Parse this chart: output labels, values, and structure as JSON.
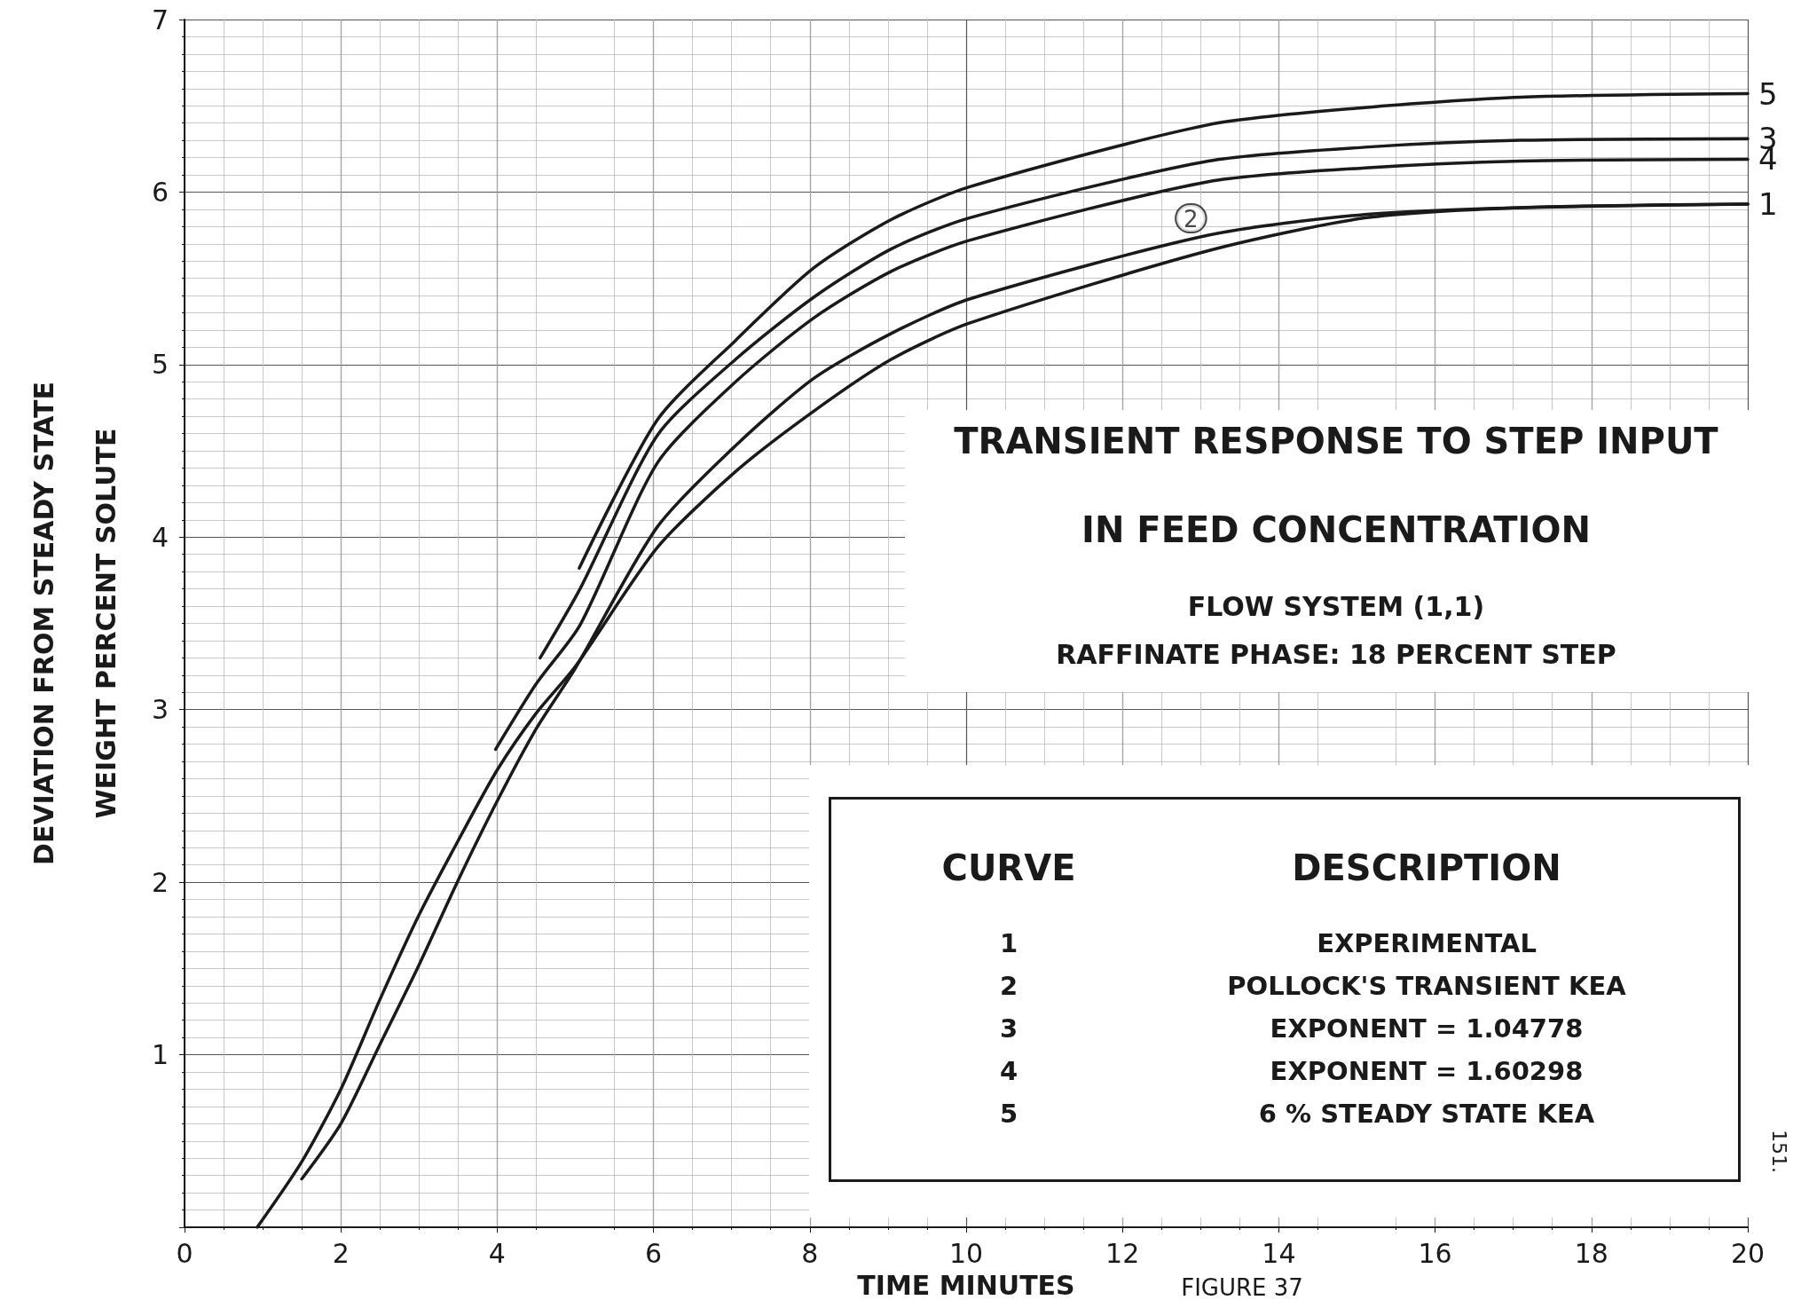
{
  "chart_data": {
    "type": "line",
    "title": "TRANSIENT RESPONSE TO STEP INPUT",
    "subtitle": "IN FEED CONCENTRATION",
    "xlabel": "TIME MINUTES",
    "ylabel": "DEVIATION FROM STEADY STATE\nWEIGHT PERCENT SOLUTE",
    "xlim": [
      0,
      20
    ],
    "xticks": [
      0,
      2,
      4,
      6,
      8,
      10,
      12,
      14,
      16,
      18,
      20
    ],
    "ylim": [
      0,
      7
    ],
    "yticks": [
      {
        "value": 0,
        "label": null
      },
      1,
      2,
      3,
      4,
      5,
      6,
      7
    ],
    "grid": true,
    "marker": "none",
    "line_style": "solid",
    "legend": false,
    "series": [
      {
        "name": "1",
        "color": "#1a1a1a",
        "x": [
          0.93,
          1.5,
          2,
          2.5,
          3,
          3.5,
          4,
          4.5,
          5,
          6.05,
          7.05,
          8.05,
          9.04,
          10.04,
          13.1,
          15.1,
          17.1,
          20
        ],
        "values": [
          0,
          0.38,
          0.8,
          1.32,
          1.81,
          2.24,
          2.65,
          2.98,
          3.25,
          3.94,
          4.38,
          4.73,
          5.03,
          5.24,
          5.66,
          5.85,
          5.91,
          5.93
        ]
      },
      {
        "color": "#1a1a1a",
        "x": [
          1.5,
          2,
          2.5,
          3,
          3.5,
          4,
          4.5,
          5,
          6.05,
          7.05,
          8.05,
          9.04,
          10.04,
          13.1,
          15.1,
          17.1,
          20
        ],
        "values": [
          0.28,
          0.6,
          1.06,
          1.52,
          2.01,
          2.47,
          2.89,
          3.24,
          4.06,
          4.53,
          4.92,
          5.18,
          5.38,
          5.75,
          5.87,
          5.91,
          5.93
        ]
      },
      {
        "name": "3",
        "color": "#1a1a1a",
        "x": [
          4.55,
          5.06,
          6.05,
          7.05,
          8.05,
          9.04,
          10.04,
          13.1,
          15.1,
          17.1,
          20
        ],
        "values": [
          3.3,
          3.7,
          4.59,
          5.03,
          5.39,
          5.67,
          5.85,
          6.18,
          6.26,
          6.3,
          6.31
        ]
      },
      {
        "name": "4",
        "color": "#1a1a1a",
        "x": [
          3.98,
          4.5,
          5.06,
          6.05,
          7.05,
          8.05,
          9.04,
          10.04,
          13.1,
          15.1,
          17.1,
          20
        ],
        "values": [
          2.77,
          3.15,
          3.49,
          4.43,
          4.9,
          5.27,
          5.54,
          5.72,
          6.06,
          6.14,
          6.18,
          6.19
        ]
      },
      {
        "name": "5",
        "color": "#1a1a1a",
        "x": [
          5.05,
          6.05,
          7.05,
          8.05,
          9.04,
          10.04,
          13.1,
          15.1,
          17.1,
          20
        ],
        "values": [
          3.82,
          4.68,
          5.14,
          5.56,
          5.84,
          6.03,
          6.39,
          6.49,
          6.55,
          6.57
        ]
      }
    ],
    "annotations": [
      {
        "text": "2",
        "x": 13.1,
        "y": 5.75
      },
      "FLOW SYSTEM (1,1)",
      "RAFFINATE PHASE: 18 PERCENT STEP",
      "CURVE",
      "DESCRIPTION",
      "1",
      "EXPERIMENTAL",
      "2",
      "POLLOCK'S TRANSIENT KEA",
      "3",
      "EXPONENT = 1.04778",
      "4",
      "EXPONENT = 1.60298",
      "5",
      "6 % STEADY STATE KEA",
      "FIGURE 37",
      "151."
    ]
  }
}
